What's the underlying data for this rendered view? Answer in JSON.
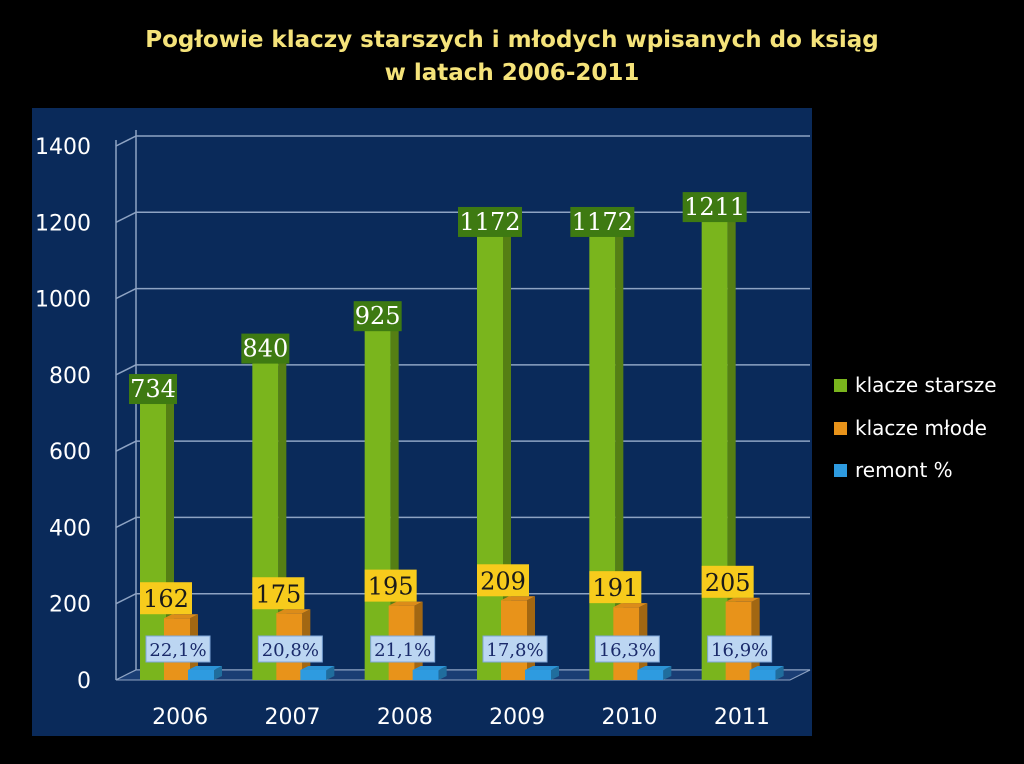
{
  "title_line1": "Pogłowie klaczy starszych i młodych wpisanych do ksiąg",
  "title_line2": "w latach 2006-2011",
  "colors": {
    "background": "#000000",
    "plot_area": "#0a2a5a",
    "title": "#f5e37a",
    "klacze_starsze": "#7ab51d",
    "klacze_mlode": "#e8931a",
    "remont": "#2e9be0",
    "label_green_bg": "#3e7a12",
    "label_orange_bg": "#f7cb1c",
    "label_blue_bg": "#bcd6f2"
  },
  "legend": [
    {
      "label": "klacze starsze",
      "color": "#7ab51d"
    },
    {
      "label": "klacze młode",
      "color": "#e8931a"
    },
    {
      "label": "remont %",
      "color": "#2e9be0"
    }
  ],
  "chart_data": {
    "type": "bar",
    "title": "Pogłowie klaczy starszych i młodych wpisanych do ksiąg w latach 2006-2011",
    "categories": [
      "2006",
      "2007",
      "2008",
      "2009",
      "2010",
      "2011"
    ],
    "ylim": [
      0,
      1400
    ],
    "yticks": [
      "0",
      "200",
      "400",
      "600",
      "800",
      "1000",
      "1200",
      "1400"
    ],
    "grid": true,
    "legend_position": "right",
    "series": [
      {
        "name": "klacze starsze",
        "values": [
          734,
          840,
          925,
          1172,
          1172,
          1211
        ],
        "labels": [
          "734",
          "840",
          "925",
          "1172",
          "1172",
          "1211"
        ]
      },
      {
        "name": "klacze młode",
        "values": [
          162,
          175,
          195,
          209,
          191,
          205
        ],
        "labels": [
          "162",
          "175",
          "195",
          "209",
          "191",
          "205"
        ]
      },
      {
        "name": "remont %",
        "values": [
          22.1,
          20.8,
          21.1,
          17.8,
          16.3,
          16.9
        ],
        "labels": [
          "22,1%",
          "20,8%",
          "21,1%",
          "17,8%",
          "16,3%",
          "16,9%"
        ]
      }
    ]
  }
}
